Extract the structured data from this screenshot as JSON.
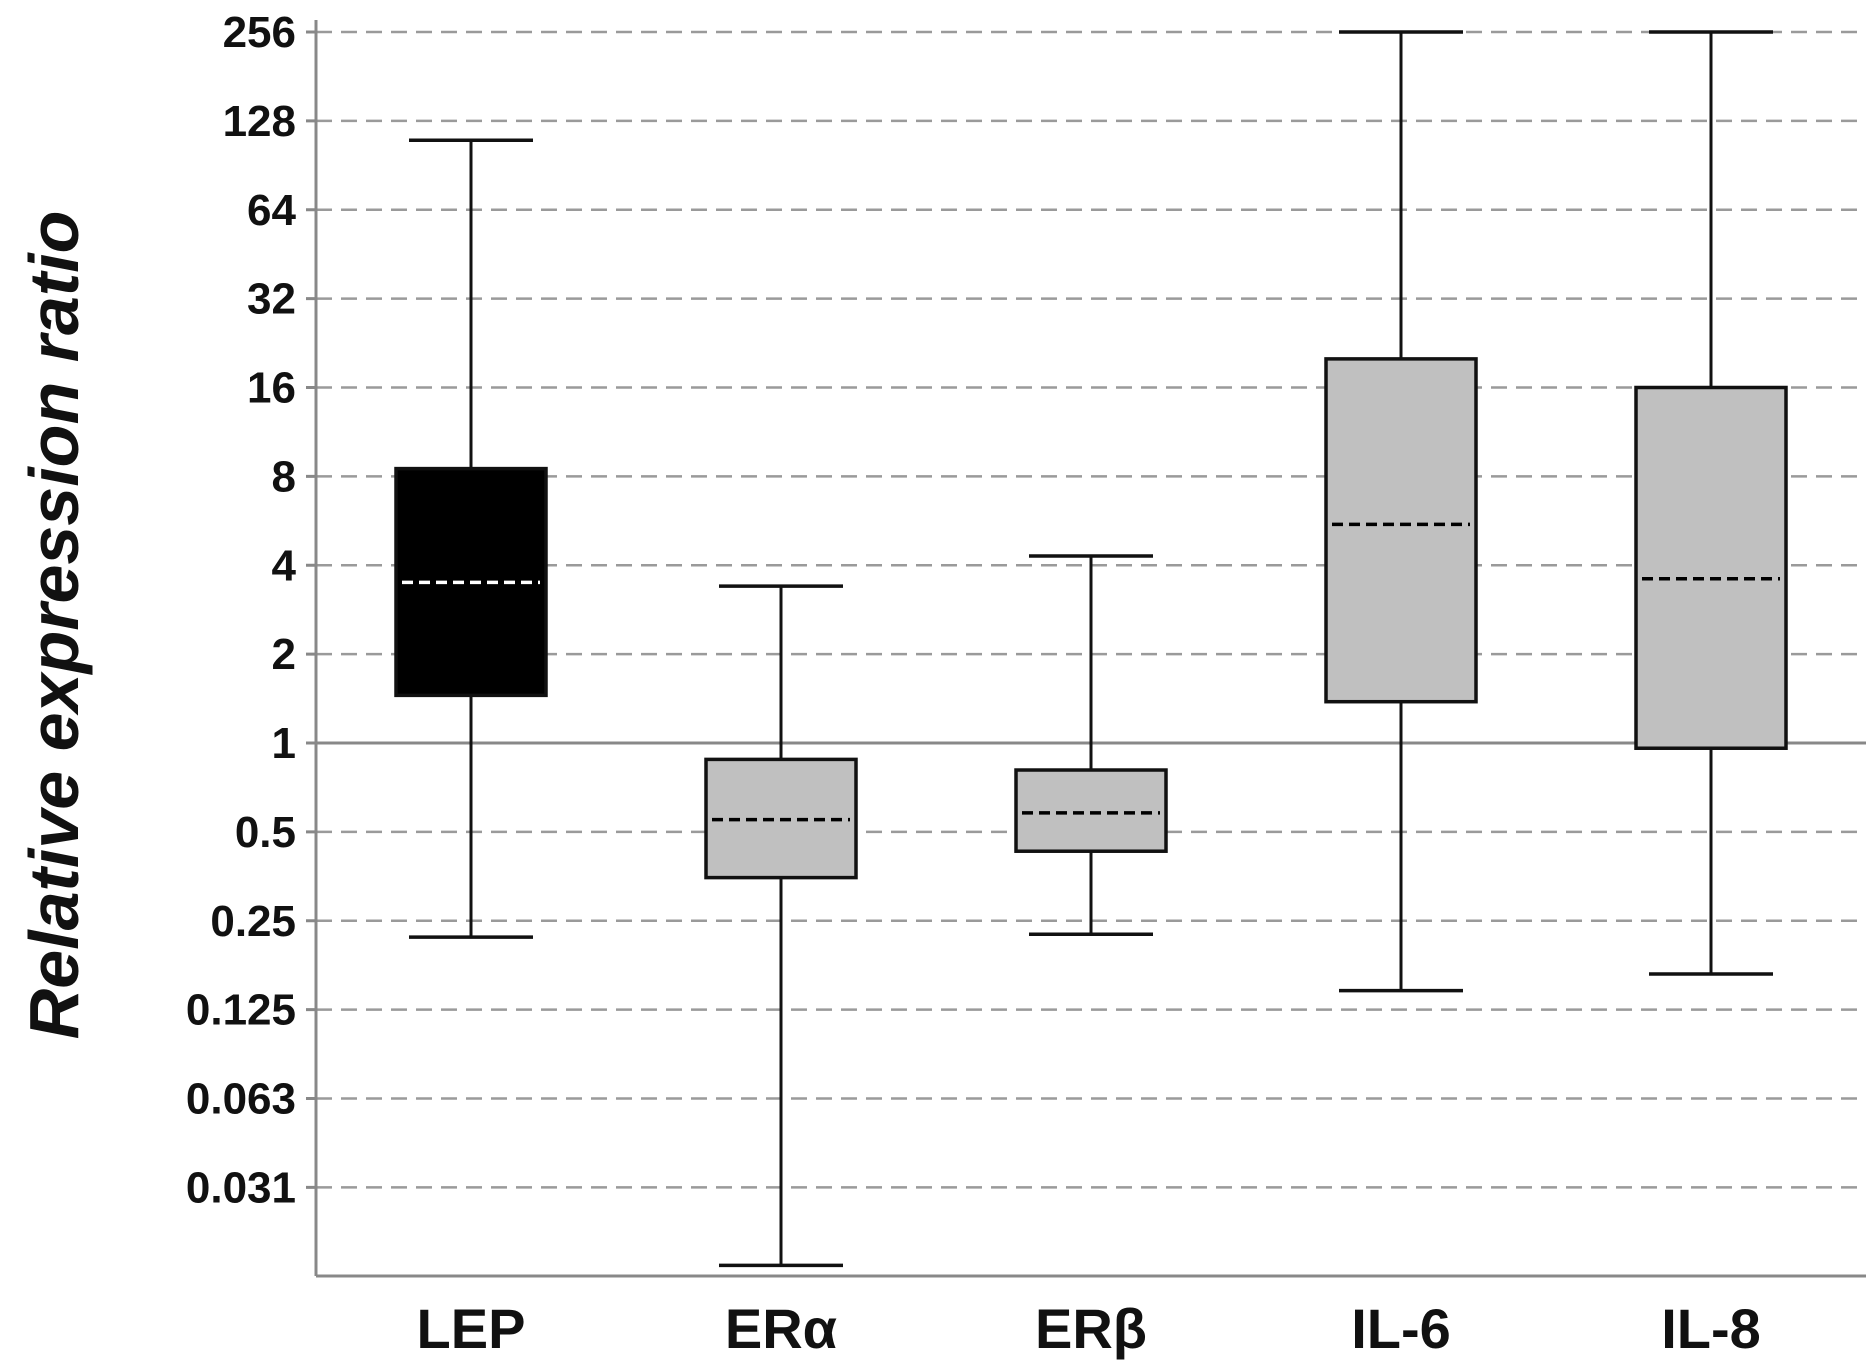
{
  "chart_data": {
    "type": "box",
    "title": "",
    "xlabel": "",
    "ylabel": "Relative expression ratio",
    "yscale": "log2",
    "ylim": [
      0.0155,
      256
    ],
    "reference_line": 1,
    "grid": {
      "horizontal": true,
      "style": "dashed"
    },
    "yticks": [
      {
        "value": 256,
        "label": "256"
      },
      {
        "value": 128,
        "label": "128"
      },
      {
        "value": 64,
        "label": "64"
      },
      {
        "value": 32,
        "label": "32"
      },
      {
        "value": 16,
        "label": "16"
      },
      {
        "value": 8,
        "label": "8"
      },
      {
        "value": 4,
        "label": "4"
      },
      {
        "value": 2,
        "label": "2"
      },
      {
        "value": 1,
        "label": "1"
      },
      {
        "value": 0.5,
        "label": "0.5"
      },
      {
        "value": 0.25,
        "label": "0.25"
      },
      {
        "value": 0.125,
        "label": "0.125"
      },
      {
        "value": 0.0625,
        "label": "0.063"
      },
      {
        "value": 0.03125,
        "label": "0.031"
      }
    ],
    "categories": [
      "LEP",
      "ERα",
      "ERβ",
      "IL-6",
      "IL-8"
    ],
    "boxes": [
      {
        "category": "LEP",
        "min": 0.22,
        "q1": 1.45,
        "median": 3.5,
        "q3": 8.5,
        "max": 110,
        "color": "#000000",
        "median_color": "#ffffff"
      },
      {
        "category": "ERα",
        "min": 0.017,
        "q1": 0.35,
        "median": 0.55,
        "q3": 0.88,
        "max": 3.4,
        "color": "#c0c0c0",
        "median_color": "#000000"
      },
      {
        "category": "ERβ",
        "min": 0.225,
        "q1": 0.43,
        "median": 0.58,
        "q3": 0.81,
        "max": 4.3,
        "color": "#c0c0c0",
        "median_color": "#000000"
      },
      {
        "category": "IL-6",
        "min": 0.145,
        "q1": 1.38,
        "median": 5.5,
        "q3": 20,
        "max": 256,
        "color": "#c0c0c0",
        "median_color": "#000000"
      },
      {
        "category": "IL-8",
        "min": 0.165,
        "q1": 0.96,
        "median": 3.6,
        "q3": 16,
        "max": 256,
        "color": "#c0c0c0",
        "median_color": "#000000"
      }
    ]
  }
}
